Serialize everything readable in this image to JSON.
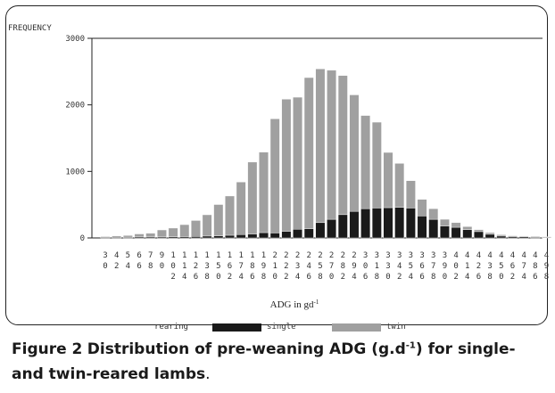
{
  "chart_data": {
    "type": "bar",
    "stacked": true,
    "ylabel": "FREQUENCY",
    "xlabel": {
      "text": "ADG in gd",
      "superscript": "-1"
    },
    "ylim": [
      0,
      3000
    ],
    "yticks": [
      "0",
      "1000",
      "2000",
      "3000"
    ],
    "categories": [
      "30",
      "42",
      "54",
      "66",
      "78",
      "90",
      "102",
      "114",
      "126",
      "138",
      "150",
      "162",
      "174",
      "186",
      "198",
      "210",
      "222",
      "234",
      "246",
      "258",
      "270",
      "282",
      "294",
      "306",
      "318",
      "330",
      "342",
      "354",
      "366",
      "378",
      "390",
      "402",
      "414",
      "426",
      "438",
      "450",
      "462",
      "474",
      "486",
      "498"
    ],
    "legend": {
      "title": "rearing",
      "placement": "bottom"
    },
    "series": [
      {
        "name": "single",
        "color": "#1a1a1a",
        "values": [
          10,
          12,
          12,
          15,
          15,
          15,
          18,
          20,
          22,
          28,
          32,
          40,
          50,
          60,
          80,
          75,
          100,
          130,
          140,
          230,
          280,
          350,
          400,
          440,
          450,
          455,
          460,
          450,
          330,
          280,
          180,
          160,
          125,
          95,
          55,
          28,
          20,
          18,
          12,
          8
        ]
      },
      {
        "name": "twin",
        "color": "#a0a0a0",
        "values": [
          10,
          18,
          25,
          45,
          55,
          105,
          130,
          180,
          240,
          320,
          470,
          590,
          790,
          1080,
          1210,
          1715,
          1985,
          1985,
          2270,
          2310,
          2240,
          2090,
          1750,
          1400,
          1290,
          830,
          660,
          410,
          250,
          160,
          100,
          70,
          45,
          30,
          25,
          20,
          12,
          10,
          10,
          10
        ]
      }
    ]
  },
  "caption": {
    "figure_label": "Figure 2",
    "text_before": "Distribution of pre-weaning ADG (g.d",
    "superscript": "-1",
    "text_after": ") for single-and twin-reared lambs",
    "period": "."
  }
}
